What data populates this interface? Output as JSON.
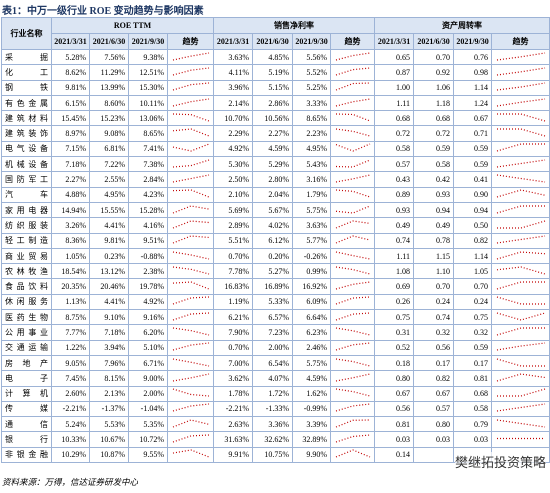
{
  "title": "表1：中万一级行业 ROE 变动趋势与影响因素",
  "table": {
    "corner": "行业名称",
    "groups": [
      "ROE TTM",
      "销售净利率",
      "资产周转率"
    ],
    "dates": [
      "2021/3/31",
      "2021/6/30",
      "2021/9/30"
    ],
    "trend": "趋势",
    "rows": [
      {
        "name": "采掘",
        "groups": [
          [
            "5.28%",
            "7.56%",
            "9.38%"
          ],
          [
            "3.63%",
            "4.85%",
            "5.56%"
          ],
          [
            "0.65",
            "0.70",
            "0.76"
          ]
        ]
      },
      {
        "name": "化工",
        "groups": [
          [
            "8.62%",
            "11.29%",
            "12.51%"
          ],
          [
            "4.11%",
            "5.19%",
            "5.52%"
          ],
          [
            "0.87",
            "0.92",
            "0.98"
          ]
        ]
      },
      {
        "name": "钢铁",
        "groups": [
          [
            "9.81%",
            "13.99%",
            "15.30%"
          ],
          [
            "3.96%",
            "5.15%",
            "5.25%"
          ],
          [
            "1.00",
            "1.06",
            "1.14"
          ]
        ]
      },
      {
        "name": "有色金属",
        "groups": [
          [
            "6.15%",
            "8.60%",
            "10.11%"
          ],
          [
            "2.14%",
            "2.86%",
            "3.33%"
          ],
          [
            "1.11",
            "1.18",
            "1.24"
          ]
        ]
      },
      {
        "name": "建筑材料",
        "groups": [
          [
            "15.45%",
            "15.23%",
            "13.06%"
          ],
          [
            "10.70%",
            "10.56%",
            "8.65%"
          ],
          [
            "0.68",
            "0.68",
            "0.67"
          ]
        ]
      },
      {
        "name": "建筑装饰",
        "groups": [
          [
            "8.97%",
            "9.08%",
            "8.65%"
          ],
          [
            "2.29%",
            "2.27%",
            "2.23%"
          ],
          [
            "0.72",
            "0.72",
            "0.71"
          ]
        ]
      },
      {
        "name": "电气设备",
        "groups": [
          [
            "7.15%",
            "6.81%",
            "7.41%"
          ],
          [
            "4.92%",
            "4.59%",
            "4.95%"
          ],
          [
            "0.58",
            "0.59",
            "0.59"
          ]
        ]
      },
      {
        "name": "机械设备",
        "groups": [
          [
            "7.18%",
            "7.22%",
            "7.38%"
          ],
          [
            "5.30%",
            "5.29%",
            "5.43%"
          ],
          [
            "0.57",
            "0.58",
            "0.59"
          ]
        ]
      },
      {
        "name": "国防军工",
        "groups": [
          [
            "2.27%",
            "2.55%",
            "2.84%"
          ],
          [
            "2.50%",
            "2.80%",
            "3.16%"
          ],
          [
            "0.43",
            "0.42",
            "0.41"
          ]
        ]
      },
      {
        "name": "汽车",
        "groups": [
          [
            "4.88%",
            "4.95%",
            "4.23%"
          ],
          [
            "2.10%",
            "2.04%",
            "1.79%"
          ],
          [
            "0.89",
            "0.93",
            "0.90"
          ]
        ]
      },
      {
        "name": "家用电器",
        "groups": [
          [
            "14.94%",
            "15.55%",
            "15.28%"
          ],
          [
            "5.69%",
            "5.67%",
            "5.75%"
          ],
          [
            "0.93",
            "0.94",
            "0.94"
          ]
        ]
      },
      {
        "name": "纺织服装",
        "groups": [
          [
            "3.26%",
            "4.41%",
            "4.16%"
          ],
          [
            "2.89%",
            "4.02%",
            "3.63%"
          ],
          [
            "0.49",
            "0.49",
            "0.50"
          ]
        ]
      },
      {
        "name": "轻工制造",
        "groups": [
          [
            "8.36%",
            "9.81%",
            "9.51%"
          ],
          [
            "5.51%",
            "6.12%",
            "5.77%"
          ],
          [
            "0.74",
            "0.78",
            "0.82"
          ]
        ]
      },
      {
        "name": "商业贸易",
        "groups": [
          [
            "1.05%",
            "0.23%",
            "-0.88%"
          ],
          [
            "0.70%",
            "0.20%",
            "-0.26%"
          ],
          [
            "1.11",
            "1.15",
            "1.14"
          ]
        ]
      },
      {
        "name": "农林牧渔",
        "groups": [
          [
            "18.54%",
            "13.12%",
            "2.38%"
          ],
          [
            "7.78%",
            "5.27%",
            "0.99%"
          ],
          [
            "1.08",
            "1.10",
            "1.05"
          ]
        ]
      },
      {
        "name": "食品饮料",
        "groups": [
          [
            "20.35%",
            "20.46%",
            "19.78%"
          ],
          [
            "16.83%",
            "16.89%",
            "16.92%"
          ],
          [
            "0.69",
            "0.70",
            "0.70"
          ]
        ]
      },
      {
        "name": "休闲服务",
        "groups": [
          [
            "1.13%",
            "4.41%",
            "4.92%"
          ],
          [
            "1.19%",
            "5.33%",
            "6.09%"
          ],
          [
            "0.26",
            "0.24",
            "0.24"
          ]
        ]
      },
      {
        "name": "医药生物",
        "groups": [
          [
            "8.75%",
            "9.10%",
            "9.16%"
          ],
          [
            "6.21%",
            "6.57%",
            "6.64%"
          ],
          [
            "0.75",
            "0.74",
            "0.75"
          ]
        ]
      },
      {
        "name": "公用事业",
        "groups": [
          [
            "7.77%",
            "7.18%",
            "6.20%"
          ],
          [
            "7.90%",
            "7.23%",
            "6.23%"
          ],
          [
            "0.31",
            "0.32",
            "0.32"
          ]
        ]
      },
      {
        "name": "交通运输",
        "groups": [
          [
            "1.22%",
            "3.94%",
            "5.10%"
          ],
          [
            "0.70%",
            "2.00%",
            "2.46%"
          ],
          [
            "0.52",
            "0.56",
            "0.59"
          ]
        ]
      },
      {
        "name": "房地产",
        "groups": [
          [
            "9.05%",
            "7.96%",
            "6.71%"
          ],
          [
            "7.00%",
            "6.54%",
            "5.75%"
          ],
          [
            "0.18",
            "0.17",
            "0.17"
          ]
        ]
      },
      {
        "name": "电子",
        "groups": [
          [
            "7.45%",
            "8.15%",
            "9.00%"
          ],
          [
            "3.62%",
            "4.07%",
            "4.59%"
          ],
          [
            "0.80",
            "0.82",
            "0.81"
          ]
        ]
      },
      {
        "name": "计算机",
        "groups": [
          [
            "2.60%",
            "2.13%",
            "2.00%"
          ],
          [
            "1.78%",
            "1.72%",
            "1.62%"
          ],
          [
            "0.67",
            "0.67",
            "0.68"
          ]
        ]
      },
      {
        "name": "传媒",
        "groups": [
          [
            "-2.21%",
            "-1.37%",
            "-1.04%"
          ],
          [
            "-2.21%",
            "-1.33%",
            "-0.99%"
          ],
          [
            "0.56",
            "0.57",
            "0.58"
          ]
        ]
      },
      {
        "name": "通信",
        "groups": [
          [
            "5.24%",
            "5.53%",
            "5.35%"
          ],
          [
            "2.63%",
            "3.36%",
            "3.39%"
          ],
          [
            "0.81",
            "0.80",
            "0.79"
          ]
        ]
      },
      {
        "name": "银行",
        "groups": [
          [
            "10.33%",
            "10.67%",
            "10.72%"
          ],
          [
            "31.63%",
            "32.62%",
            "32.89%"
          ],
          [
            "0.03",
            "0.03",
            "0.03"
          ]
        ]
      },
      {
        "name": "非银金融",
        "groups": [
          [
            "10.29%",
            "10.87%",
            "9.55%"
          ],
          [
            "9.91%",
            "10.75%",
            "9.90%"
          ],
          [
            "0.14",
            null,
            null
          ]
        ]
      }
    ]
  },
  "source": "资料来源：万得，信达证券研发中心",
  "watermark": "樊继拓投资策略"
}
